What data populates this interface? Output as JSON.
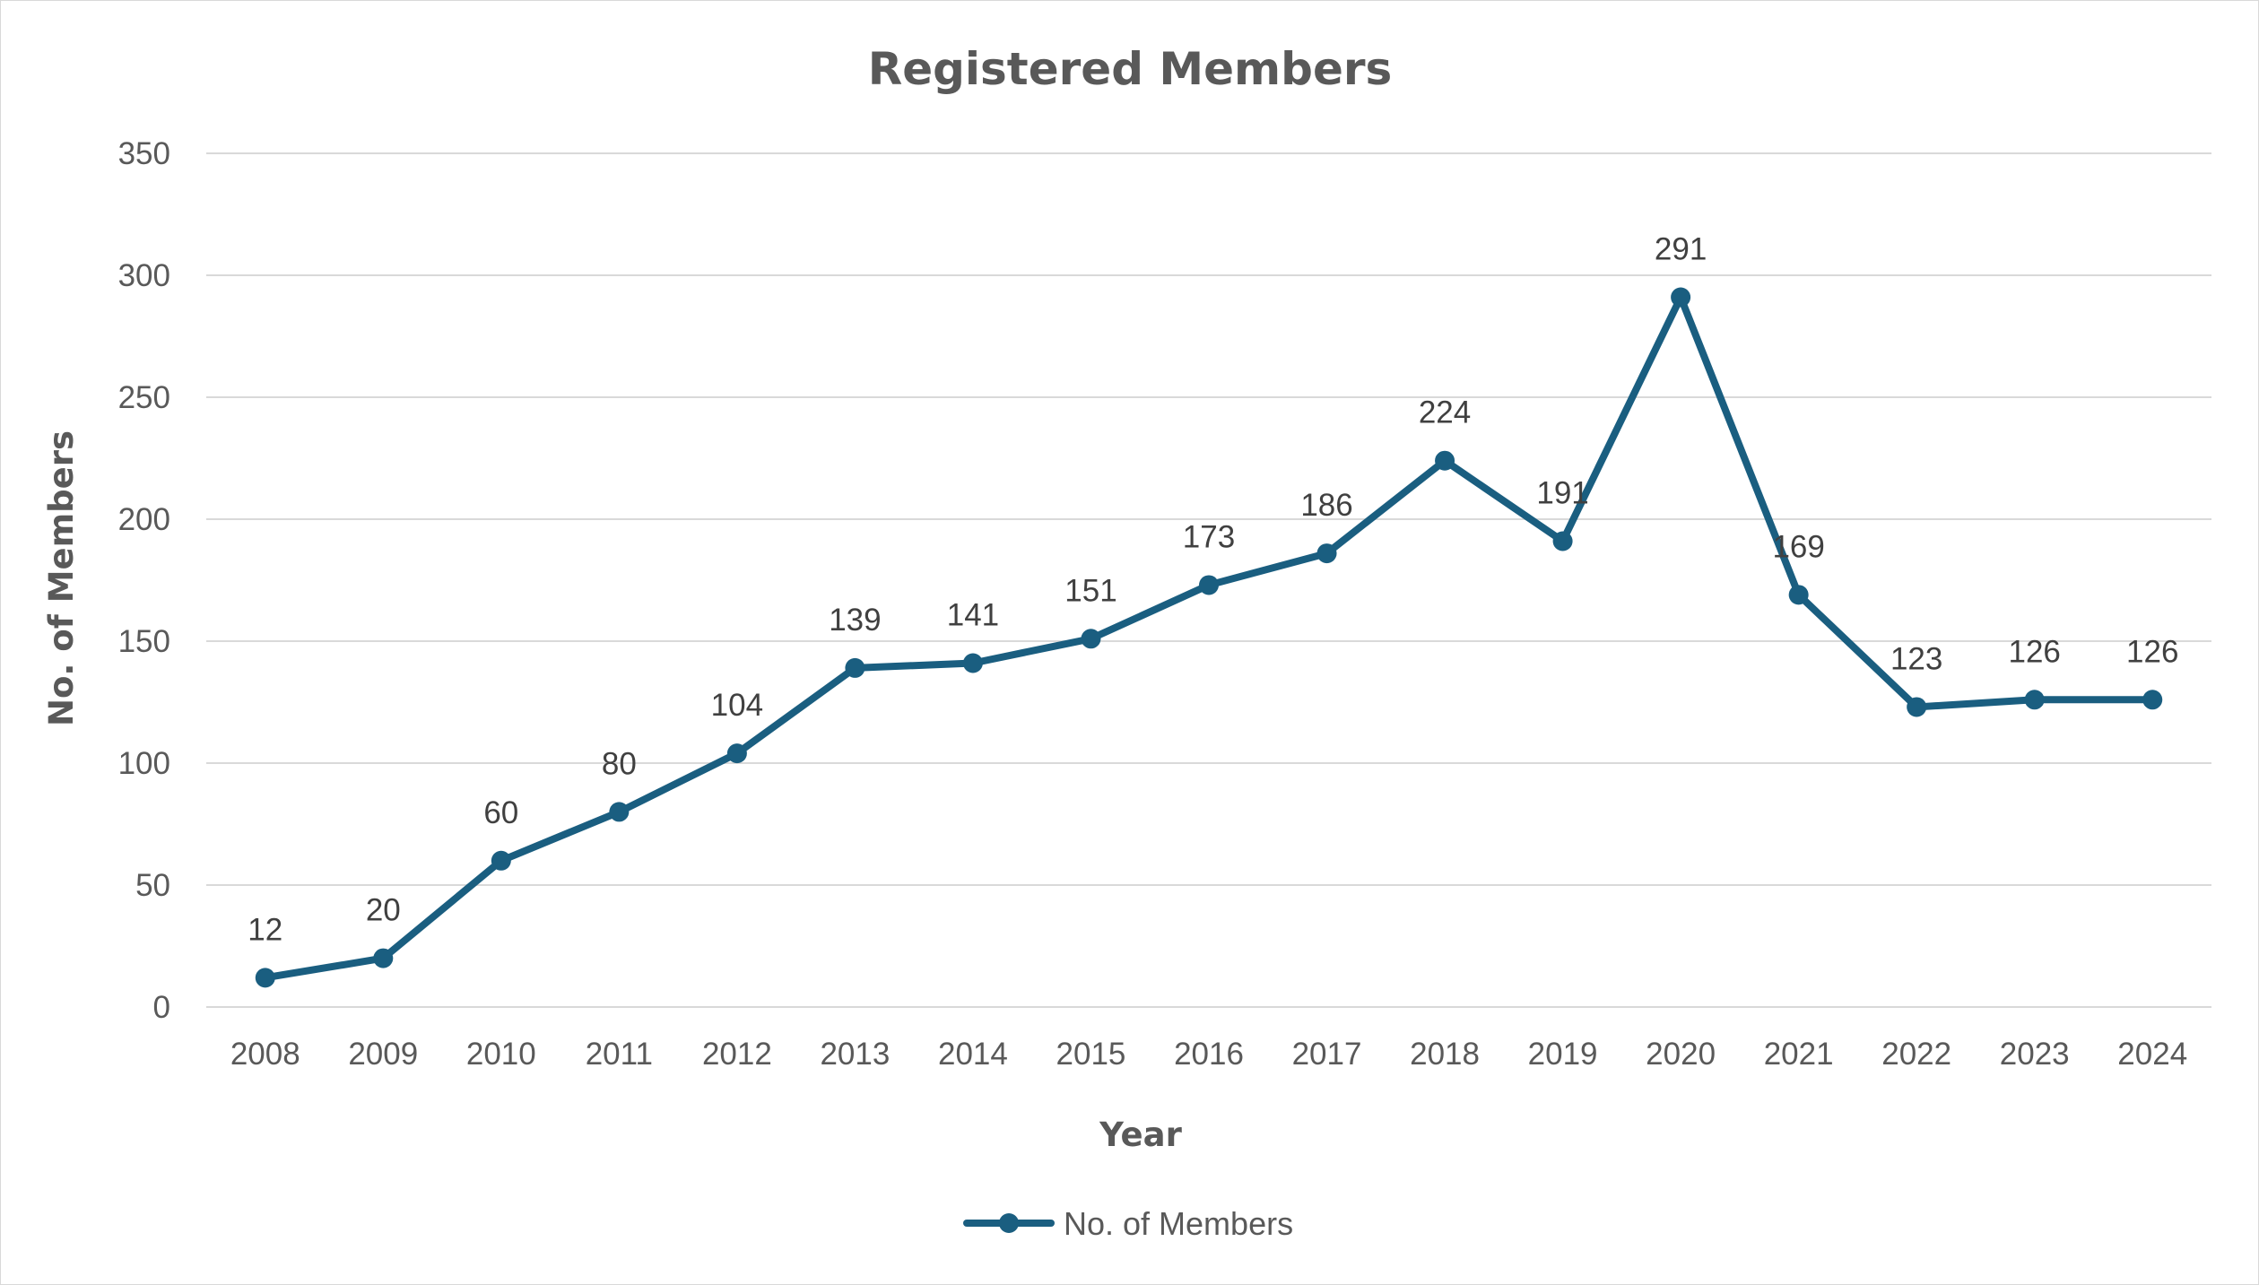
{
  "chart_data": {
    "type": "line",
    "title": "Registered Members",
    "xlabel": "Year",
    "ylabel": "No. of Members",
    "categories": [
      "2008",
      "2009",
      "2010",
      "2011",
      "2012",
      "2013",
      "2014",
      "2015",
      "2016",
      "2017",
      "2018",
      "2019",
      "2020",
      "2021",
      "2022",
      "2023",
      "2024"
    ],
    "series": [
      {
        "name": "No. of Members",
        "values": [
          12,
          20,
          60,
          80,
          104,
          139,
          141,
          151,
          173,
          186,
          224,
          191,
          291,
          169,
          123,
          126,
          126
        ],
        "color": "#1a5e80"
      }
    ],
    "ylim": [
      0,
      350
    ],
    "yticks": [
      0,
      50,
      100,
      150,
      200,
      250,
      300,
      350
    ],
    "grid": true,
    "legend_position": "bottom",
    "data_labels": true
  }
}
